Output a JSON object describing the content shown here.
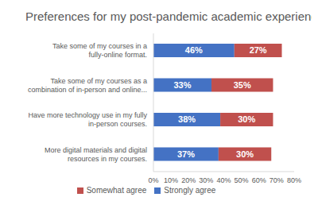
{
  "chart_data": {
    "type": "bar",
    "title": "Preferences for my post-pandemic academic experiences",
    "orientation": "horizontal",
    "stacked": true,
    "data_labels": true,
    "categories": [
      "Take some of my courses in a fully-online format.",
      "Take some of my courses as a combination of in-person and online...",
      "Have more technology use in my fully in-person courses.",
      "More digital materials and digital resources in my courses."
    ],
    "series": [
      {
        "name": "Strongly agree",
        "color": "#4472c4",
        "values": [
          46,
          33,
          38,
          37
        ],
        "value_labels": [
          "46%",
          "33%",
          "38%",
          "37%"
        ]
      },
      {
        "name": "Somewhat agree",
        "color": "#c0504d",
        "values": [
          27,
          35,
          30,
          30
        ],
        "value_labels": [
          "27%",
          "35%",
          "30%",
          "30%"
        ]
      }
    ],
    "xlim": [
      0,
      80
    ],
    "xticks": [
      {
        "value": 0,
        "label": "0%"
      },
      {
        "value": 10,
        "label": "10%"
      },
      {
        "value": 20,
        "label": "20%"
      },
      {
        "value": 30,
        "label": "30%"
      },
      {
        "value": 40,
        "label": "40%"
      },
      {
        "value": 50,
        "label": "50%"
      },
      {
        "value": 60,
        "label": "60%"
      },
      {
        "value": 70,
        "label": "70%"
      },
      {
        "value": 80,
        "label": "80%"
      }
    ],
    "grid": false,
    "legend": "bottom"
  }
}
